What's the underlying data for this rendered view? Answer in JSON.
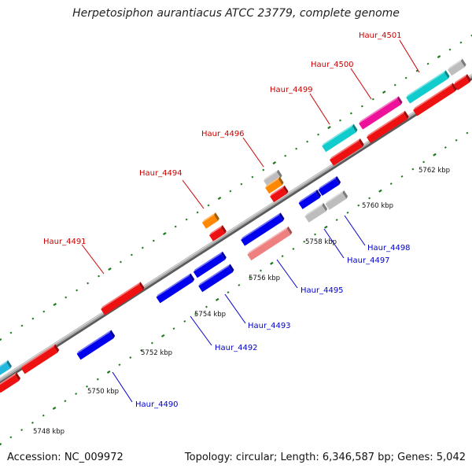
{
  "title": "Herpetosiphon aurantiacus ATCC 23779, complete genome",
  "footer": {
    "accession": "Accession: NC_009972",
    "info": "Topology: circular; Length: 6,346,587 bp; Genes: 5,042"
  },
  "colors": {
    "backbone": "#8a8a8a",
    "tick": "#1a7a1a",
    "label_forward": "#cc0000",
    "label_reverse": "#0000cc"
  },
  "scale_labels": [
    "5748 kbp",
    "5750 kbp",
    "5752 kbp",
    "5754 kbp",
    "5756 kbp",
    "5758 kbp",
    "5760 kbp",
    "5762 kbp"
  ],
  "genes_forward": [
    {
      "name": "Haur_4491",
      "color": "#ee1111"
    },
    {
      "name": "Haur_4494",
      "color": "#ff8800"
    },
    {
      "name": "Haur_4496",
      "color": "#bdbdbd"
    },
    {
      "name": "Haur_4499",
      "color": "#11cccc"
    },
    {
      "name": "Haur_4500",
      "color": "#ee1199"
    },
    {
      "name": "Haur_4501",
      "color": "#11cccc"
    }
  ],
  "genes_reverse": [
    {
      "name": "Haur_4490",
      "color": "#0000ee"
    },
    {
      "name": "Haur_4492",
      "color": "#0000ee"
    },
    {
      "name": "Haur_4493",
      "color": "#0000ee"
    },
    {
      "name": "Haur_4495",
      "color": "#ee8080"
    },
    {
      "name": "Haur_4497",
      "color": "#bdbdbd"
    },
    {
      "name": "Haur_4498",
      "color": "#0000ee"
    }
  ]
}
